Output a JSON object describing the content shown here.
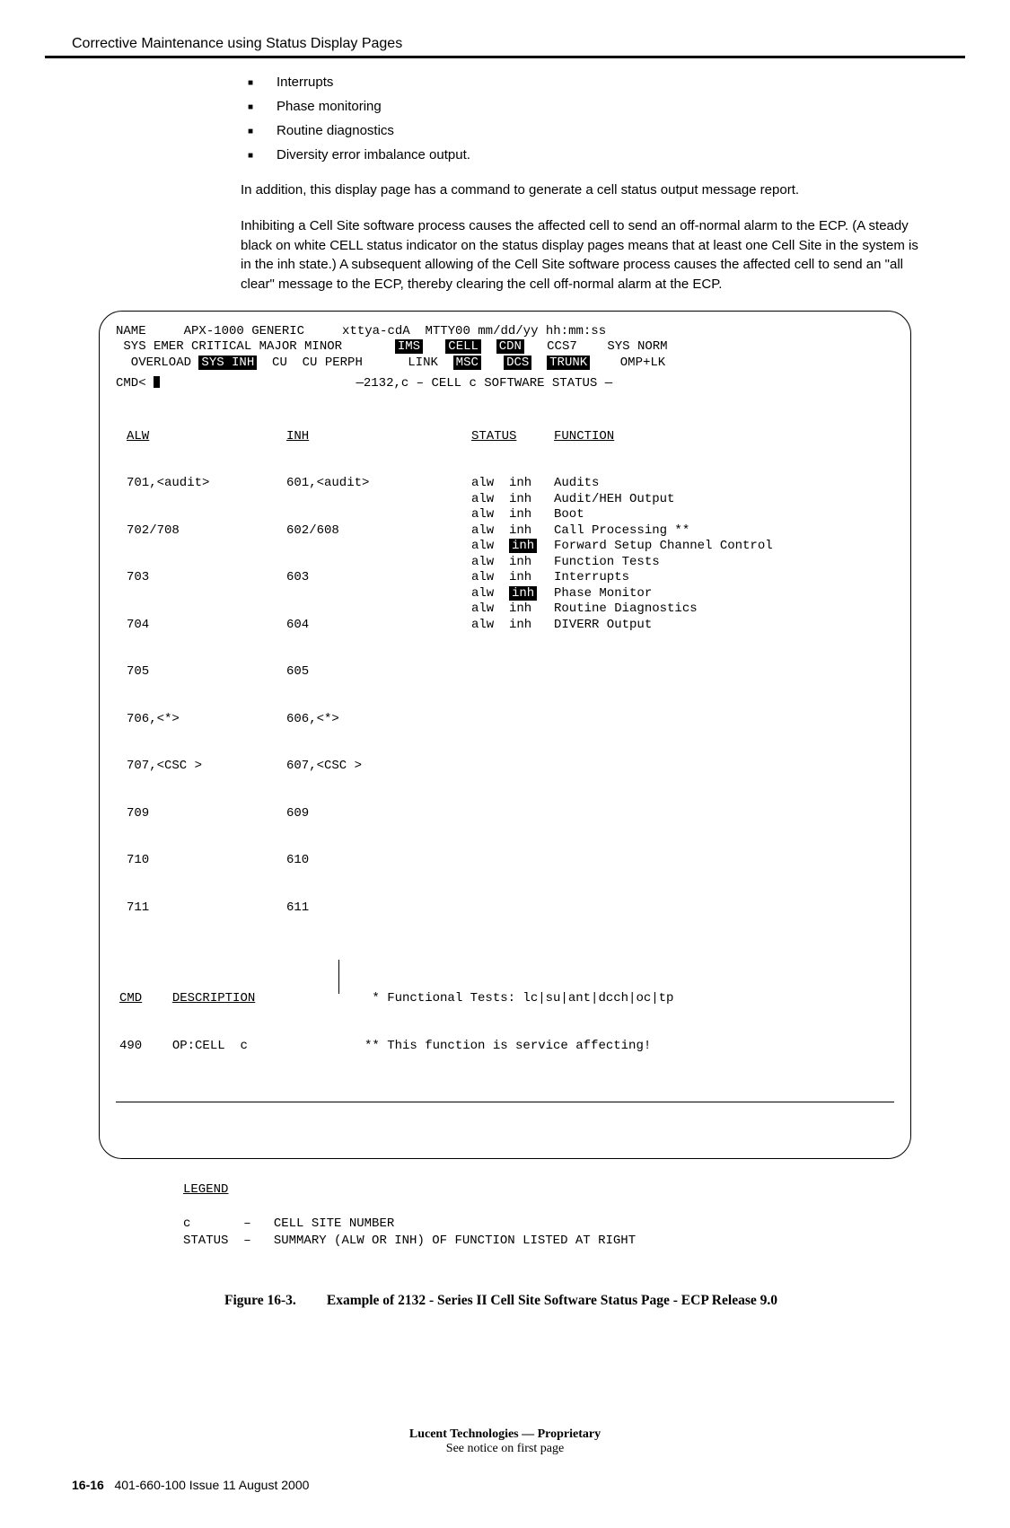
{
  "header": {
    "title": "Corrective Maintenance using Status Display Pages"
  },
  "bullets": [
    "Interrupts",
    "Phase monitoring",
    "Routine diagnostics",
    "Diversity error imbalance output."
  ],
  "para1": "In addition, this display page has a command to generate a cell status output message report.",
  "para2": "Inhibiting a Cell Site software process causes the affected cell to send an off-normal alarm to the ECP. (A steady black on white CELL status indicator on the status display pages means that at least one Cell Site in the system is in the inh state.) A subsequent allowing of the Cell Site software process causes the affected cell to send an \"all clear\" message to the ECP, thereby clearing the cell off-normal alarm at the ECP.",
  "terminal": {
    "line1": {
      "pre": "NAME     APX-1000 GENERIC     xttya-cdA  MTTY00 mm/dd/yy hh:mm:ss"
    },
    "line2": {
      "a": " SYS EMER CRITICAL MAJOR MINOR       ",
      "ims": "IMS",
      "gap1": "   ",
      "cell": "CELL",
      "gap2": "  ",
      "cdn": "CDN",
      "gap3": "   CCS7    SYS NORM"
    },
    "line3": {
      "a": "  OVERLOAD ",
      "sysinh": "SYS INH",
      "b": "  CU  CU PERPH      LINK  ",
      "msc": "MSC",
      "gap1": "   ",
      "dcs": "DCS",
      "gap2": "  ",
      "trunk": "TRUNK",
      "tail": "    OMP+LK"
    },
    "cmd_prompt": "CMD< ",
    "status_title": "2132,c – CELL c SOFTWARE STATUS",
    "col_headers": {
      "alw": "ALW",
      "inh": "INH",
      "status": "STATUS",
      "function": "FUNCTION"
    },
    "alw_rows": [
      "701,<audit>",
      "702/708",
      "703",
      "704",
      "705",
      "706,<*>",
      "707,<CSC >",
      "709",
      "710",
      "711"
    ],
    "inh_rows": [
      "601,<audit>",
      "602/608",
      "603",
      "604",
      "605",
      "606,<*>",
      "607,<CSC >",
      "609",
      "610",
      "611"
    ],
    "status_rows": [
      {
        "a": "alw",
        "b": "inh",
        "b_inv": false,
        "c": "Audits"
      },
      {
        "a": "alw",
        "b": "inh",
        "b_inv": false,
        "c": "Audit/HEH Output"
      },
      {
        "a": "alw",
        "b": "inh",
        "b_inv": false,
        "c": "Boot"
      },
      {
        "a": "alw",
        "b": "inh",
        "b_inv": false,
        "c": "Call Processing **"
      },
      {
        "a": "alw",
        "b": "inh",
        "b_inv": true,
        "c": "Forward Setup Channel Control"
      },
      {
        "a": "alw",
        "b": "inh",
        "b_inv": false,
        "c": "Function Tests"
      },
      {
        "a": "alw",
        "b": "inh",
        "b_inv": false,
        "c": "Interrupts"
      },
      {
        "a": "alw",
        "b": "inh",
        "b_inv": true,
        "c": "Phase Monitor"
      },
      {
        "a": "alw",
        "b": "inh",
        "b_inv": false,
        "c": "Routine Diagnostics"
      },
      {
        "a": "alw",
        "b": "inh",
        "b_inv": false,
        "c": "DIVERR Output"
      }
    ],
    "cmd_section": {
      "hdr_cmd": "CMD",
      "hdr_desc": "DESCRIPTION",
      "row_code": "490",
      "row_desc": "OP:CELL  c",
      "note1": " * Functional Tests: lc|su|ant|dcch|oc|tp",
      "note2": "** This function is service affecting!"
    }
  },
  "legend": {
    "title": "LEGEND",
    "rows": [
      {
        "k": "c",
        "d": "CELL SITE NUMBER"
      },
      {
        "k": "STATUS",
        "d": "SUMMARY (ALW OR INH) OF FUNCTION LISTED AT RIGHT"
      }
    ]
  },
  "figure": {
    "label": "Figure 16-3.",
    "title": "Example of 2132 - Series II Cell Site Software Status Page - ECP Release 9.0"
  },
  "footer": {
    "line1": "Lucent Technologies — Proprietary",
    "line2": "See notice on first page"
  },
  "pagefoot": {
    "pn": "16-16",
    "rest": "401-660-100 Issue 11    August 2000"
  }
}
